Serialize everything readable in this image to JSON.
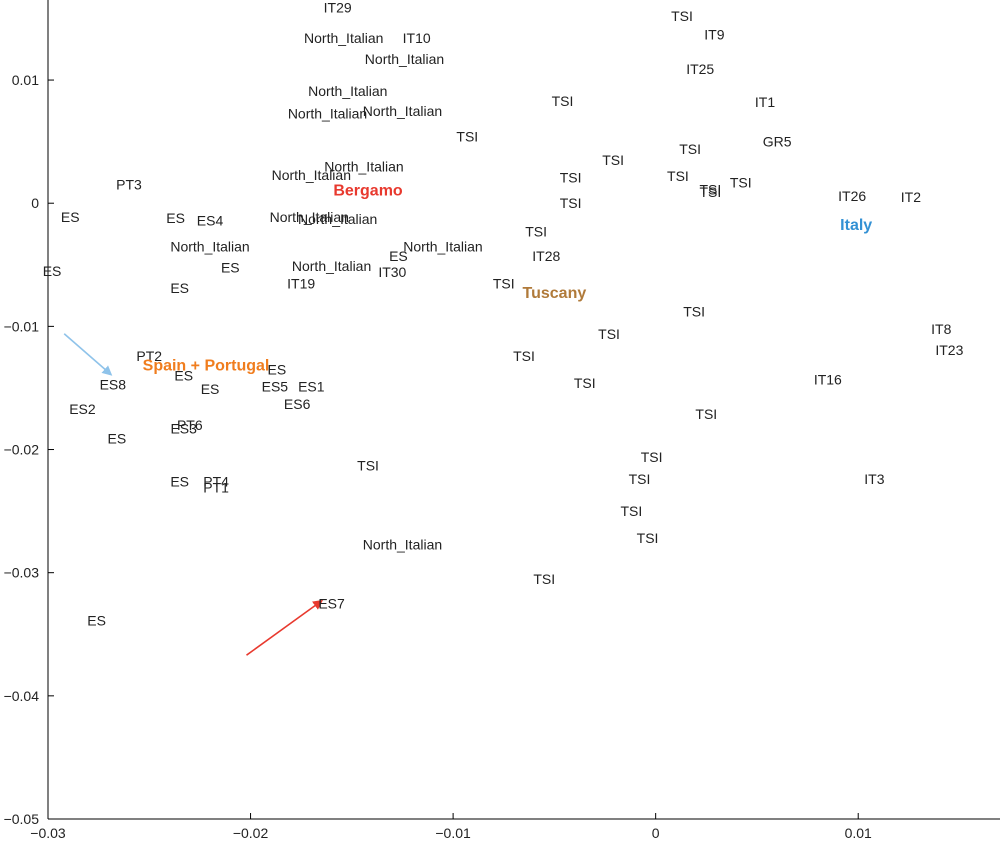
{
  "chart_data": {
    "type": "scatter",
    "title": "",
    "xlabel": "",
    "ylabel": "",
    "xlim": [
      -0.03,
      0.017
    ],
    "ylim": [
      -0.05,
      0.0165
    ],
    "grid": false,
    "x_ticks": [
      {
        "value": -0.03,
        "label": "−0.03"
      },
      {
        "value": -0.02,
        "label": "−0.02"
      },
      {
        "value": -0.01,
        "label": "−0.01"
      },
      {
        "value": 0,
        "label": "0"
      },
      {
        "value": 0.01,
        "label": "0.01"
      }
    ],
    "y_ticks": [
      {
        "value": 0.01,
        "label": "0.01"
      },
      {
        "value": 0,
        "label": "0"
      },
      {
        "value": -0.01,
        "label": "−0.01"
      },
      {
        "value": -0.02,
        "label": "−0.02"
      },
      {
        "value": -0.03,
        "label": "−0.03"
      },
      {
        "value": -0.04,
        "label": "−0.04"
      },
      {
        "value": -0.05,
        "label": "−0.05"
      }
    ],
    "points": [
      {
        "label": "IT29",
        "x": -0.0157,
        "y": 0.0159
      },
      {
        "label": "North_Italian",
        "x": -0.0154,
        "y": 0.0134
      },
      {
        "label": "IT10",
        "x": -0.0118,
        "y": 0.0134
      },
      {
        "label": "North_Italian",
        "x": -0.0124,
        "y": 0.0117
      },
      {
        "label": "North_Italian",
        "x": -0.0152,
        "y": 0.0091
      },
      {
        "label": "North_Italian",
        "x": -0.0162,
        "y": 0.0073
      },
      {
        "label": "North_Italian",
        "x": -0.0125,
        "y": 0.0075
      },
      {
        "label": "TSI",
        "x": -0.0093,
        "y": 0.0054
      },
      {
        "label": "North_Italian",
        "x": -0.0144,
        "y": 0.003
      },
      {
        "label": "North_Italian",
        "x": -0.017,
        "y": 0.0023
      },
      {
        "label": "North_Italian",
        "x": -0.0171,
        "y": -0.0011
      },
      {
        "label": "North_Italian",
        "x": -0.0157,
        "y": -0.0013
      },
      {
        "label": "North_Italian",
        "x": -0.0105,
        "y": -0.0035
      },
      {
        "label": "North_Italian",
        "x": -0.016,
        "y": -0.0051
      },
      {
        "label": "IT30",
        "x": -0.013,
        "y": -0.0056
      },
      {
        "label": "ES",
        "x": -0.0127,
        "y": -0.0043
      },
      {
        "label": "North_Italian",
        "x": -0.022,
        "y": -0.0035
      },
      {
        "label": "North_Italian",
        "x": -0.0125,
        "y": -0.0277
      },
      {
        "label": "ES",
        "x": -0.0289,
        "y": -0.0011
      },
      {
        "label": "ES",
        "x": -0.0298,
        "y": -0.0055
      },
      {
        "label": "PT3",
        "x": -0.026,
        "y": 0.0015
      },
      {
        "label": "ES",
        "x": -0.0237,
        "y": -0.0012
      },
      {
        "label": "ES4",
        "x": -0.022,
        "y": -0.0014
      },
      {
        "label": "ES",
        "x": -0.021,
        "y": -0.0052
      },
      {
        "label": "ES",
        "x": -0.0235,
        "y": -0.0069
      },
      {
        "label": "IT19",
        "x": -0.0175,
        "y": -0.0065
      },
      {
        "label": "PT2",
        "x": -0.025,
        "y": -0.0124
      },
      {
        "label": "ES",
        "x": -0.0233,
        "y": -0.014
      },
      {
        "label": "ES8",
        "x": -0.0268,
        "y": -0.0147
      },
      {
        "label": "ES",
        "x": -0.022,
        "y": -0.0151
      },
      {
        "label": "ES5",
        "x": -0.0188,
        "y": -0.0149
      },
      {
        "label": "ES",
        "x": -0.0187,
        "y": -0.0135
      },
      {
        "label": "ES1",
        "x": -0.017,
        "y": -0.0149
      },
      {
        "label": "ES6",
        "x": -0.0177,
        "y": -0.0163
      },
      {
        "label": "ES2",
        "x": -0.0283,
        "y": -0.0167
      },
      {
        "label": "PT6",
        "x": -0.023,
        "y": -0.018
      },
      {
        "label": "ES3",
        "x": -0.0233,
        "y": -0.0183
      },
      {
        "label": "ES",
        "x": -0.0266,
        "y": -0.0191
      },
      {
        "label": "ES",
        "x": -0.0235,
        "y": -0.0226
      },
      {
        "label": "PT4",
        "x": -0.0217,
        "y": -0.0226
      },
      {
        "label": "PT1",
        "x": -0.0217,
        "y": -0.0231
      },
      {
        "label": "ES7",
        "x": -0.016,
        "y": -0.0325
      },
      {
        "label": "ES",
        "x": -0.0276,
        "y": -0.0339
      },
      {
        "label": "TSI",
        "x": -0.0142,
        "y": -0.0213
      },
      {
        "label": "TSI",
        "x": 0.0013,
        "y": 0.0152
      },
      {
        "label": "IT9",
        "x": 0.0029,
        "y": 0.0137
      },
      {
        "label": "IT25",
        "x": 0.0022,
        "y": 0.0109
      },
      {
        "label": "TSI",
        "x": -0.0046,
        "y": 0.0083
      },
      {
        "label": "IT1",
        "x": 0.0054,
        "y": 0.0082
      },
      {
        "label": "GR5",
        "x": 0.006,
        "y": 0.005
      },
      {
        "label": "TSI",
        "x": 0.0017,
        "y": 0.0044
      },
      {
        "label": "TSI",
        "x": -0.0021,
        "y": 0.0035
      },
      {
        "label": "TSI",
        "x": -0.0042,
        "y": 0.0021
      },
      {
        "label": "TSI",
        "x": 0.0011,
        "y": 0.0022
      },
      {
        "label": "TSI",
        "x": 0.0027,
        "y": 0.0011
      },
      {
        "label": "TSI",
        "x": 0.0027,
        "y": 0.0009
      },
      {
        "label": "TSI",
        "x": 0.0042,
        "y": 0.0017
      },
      {
        "label": "TSI",
        "x": -0.0042,
        "y": 0.0
      },
      {
        "label": "IT26",
        "x": 0.0097,
        "y": 0.0006
      },
      {
        "label": "IT2",
        "x": 0.0126,
        "y": 0.0005
      },
      {
        "label": "TSI",
        "x": -0.0059,
        "y": -0.0023
      },
      {
        "label": "IT28",
        "x": -0.0054,
        "y": -0.0043
      },
      {
        "label": "TSI",
        "x": -0.0075,
        "y": -0.0065
      },
      {
        "label": "TSI",
        "x": 0.0019,
        "y": -0.0088
      },
      {
        "label": "TSI",
        "x": -0.0023,
        "y": -0.0106
      },
      {
        "label": "TSI",
        "x": -0.0065,
        "y": -0.0124
      },
      {
        "label": "TSI",
        "x": -0.0035,
        "y": -0.0146
      },
      {
        "label": "IT8",
        "x": 0.0141,
        "y": -0.0102
      },
      {
        "label": "IT23",
        "x": 0.0145,
        "y": -0.0119
      },
      {
        "label": "IT16",
        "x": 0.0085,
        "y": -0.0143
      },
      {
        "label": "TSI",
        "x": 0.0025,
        "y": -0.0171
      },
      {
        "label": "TSI",
        "x": -0.0002,
        "y": -0.0206
      },
      {
        "label": "TSI",
        "x": -0.0008,
        "y": -0.0224
      },
      {
        "label": "IT3",
        "x": 0.0108,
        "y": -0.0224
      },
      {
        "label": "TSI",
        "x": -0.0012,
        "y": -0.025
      },
      {
        "label": "TSI",
        "x": -0.0004,
        "y": -0.0272
      },
      {
        "label": "TSI",
        "x": -0.0055,
        "y": -0.0305
      }
    ],
    "group_labels": [
      {
        "label": "Bergamo",
        "x": -0.0142,
        "y": 0.0011,
        "color": "#e8392e"
      },
      {
        "label": "Italy",
        "x": 0.0099,
        "y": -0.0017,
        "color": "#3391d4"
      },
      {
        "label": "Tuscany",
        "x": -0.005,
        "y": -0.0072,
        "color": "#b07a3a"
      },
      {
        "label": "Spain + Portugal",
        "x": -0.0222,
        "y": -0.0131,
        "color": "#f07d1e"
      }
    ],
    "arrows": [
      {
        "from": [
          -0.0292,
          -0.0106
        ],
        "to": [
          -0.0269,
          -0.0139
        ],
        "color": "#8fc3ea"
      },
      {
        "from": [
          -0.0202,
          -0.0367
        ],
        "to": [
          -0.0165,
          -0.0323
        ],
        "color": "#e8392e"
      }
    ]
  }
}
